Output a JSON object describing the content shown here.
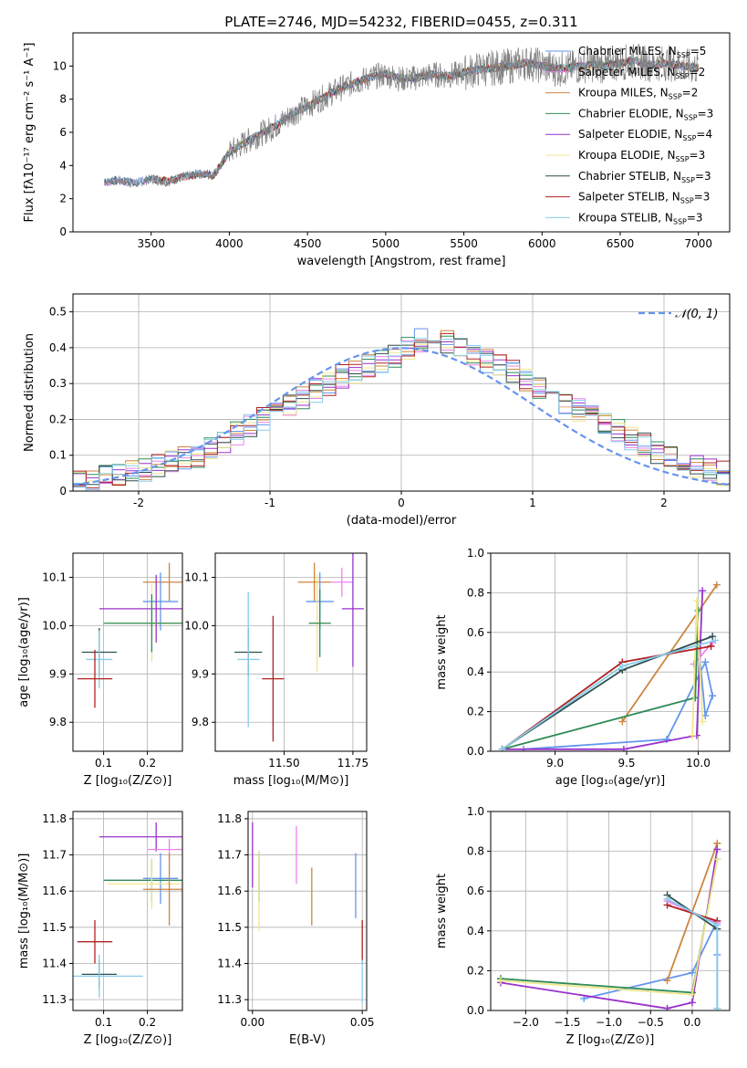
{
  "figure_title": "PLATE=2746, MJD=54232, FIBERID=0455, z=0.311",
  "colors": {
    "Chabrier MILES": "#6495ed",
    "Salpeter MILES": "#ee82ee",
    "Kroupa MILES": "#cd853f",
    "Chabrier ELODIE": "#2e8b57",
    "Salpeter ELODIE": "#9932cc",
    "Kroupa ELODIE": "#f0e68c",
    "Chabrier STELIB": "#2f4f4f",
    "Salpeter STELIB": "#b22222",
    "Kroupa STELIB": "#87ceeb"
  },
  "chart_data": [
    {
      "id": "spectrum",
      "type": "line",
      "xlabel": "wavelength [Angstrom, rest frame]",
      "ylabel": "Flux [fλ10⁻¹⁷ erg cm⁻² s⁻¹ A⁻¹]",
      "xlim": [
        3000,
        7200
      ],
      "ylim": [
        0,
        12
      ],
      "xticks": [
        3500,
        4000,
        4500,
        5000,
        5500,
        6000,
        6500,
        7000
      ],
      "yticks": [
        0,
        2,
        4,
        6,
        8,
        10
      ],
      "legend_position": "top-right",
      "legend": [
        {
          "label": "Chabrier MILES, N",
          "sub": "SSP",
          "tail": "=5",
          "color": "#6495ed"
        },
        {
          "label": "Salpeter MILES, N",
          "sub": "SSP",
          "tail": "=2",
          "color": "#ee82ee"
        },
        {
          "label": "Kroupa MILES, N",
          "sub": "SSP",
          "tail": "=2",
          "color": "#cd853f"
        },
        {
          "label": "Chabrier ELODIE, N",
          "sub": "SSP",
          "tail": "=3",
          "color": "#2e8b57"
        },
        {
          "label": "Salpeter ELODIE, N",
          "sub": "SSP",
          "tail": "=4",
          "color": "#9932cc"
        },
        {
          "label": "Kroupa ELODIE, N",
          "sub": "SSP",
          "tail": "=3",
          "color": "#f0e68c"
        },
        {
          "label": "Chabrier STELIB, N",
          "sub": "SSP",
          "tail": "=3",
          "color": "#2f4f4f"
        },
        {
          "label": "Salpeter STELIB, N",
          "sub": "SSP",
          "tail": "=3",
          "color": "#b22222"
        },
        {
          "label": "Kroupa STELIB, N",
          "sub": "SSP",
          "tail": "=3",
          "color": "#87ceeb"
        }
      ],
      "data_x": [
        3200,
        3300,
        3400,
        3500,
        3600,
        3700,
        3800,
        3900,
        4000,
        4100,
        4200,
        4300,
        4400,
        4500,
        4600,
        4700,
        4800,
        4900,
        5000,
        5100,
        5200,
        5300,
        5400,
        5500,
        5600,
        5700,
        5800,
        5900,
        6000,
        6100,
        6200,
        6300,
        6400,
        6500,
        6600,
        6700,
        6800,
        6900,
        7000
      ],
      "data_y": [
        3.0,
        3.1,
        2.9,
        3.2,
        3.0,
        3.3,
        3.5,
        3.4,
        4.8,
        5.4,
        5.9,
        6.4,
        7.1,
        7.6,
        8.1,
        8.6,
        9.0,
        9.3,
        9.5,
        9.2,
        9.3,
        9.5,
        9.4,
        9.6,
        9.8,
        9.9,
        10.0,
        10.2,
        10.0,
        9.8,
        9.9,
        10.1,
        10.0,
        10.2,
        10.3,
        10.1,
        10.2,
        10.0,
        9.9
      ],
      "data_color": "#808080",
      "model_y": [
        3.0,
        3.1,
        2.95,
        3.2,
        3.05,
        3.3,
        3.5,
        3.45,
        4.8,
        5.4,
        5.9,
        6.4,
        7.1,
        7.6,
        8.1,
        8.6,
        9.0,
        9.3,
        9.5,
        9.25,
        9.3,
        9.5,
        9.4,
        9.6,
        9.8,
        9.9,
        10.0,
        10.2,
        10.0,
        9.85,
        9.9,
        10.1,
        10.0,
        10.2,
        10.3,
        10.1,
        10.2,
        10.0,
        9.9
      ],
      "model_start": {
        "Chabrier MILES": 3200,
        "Salpeter MILES": 3200,
        "Kroupa MILES": 3520,
        "Chabrier ELODIE": 3900,
        "Salpeter ELODIE": 3900,
        "Kroupa ELODIE": 3900,
        "Chabrier STELIB": 3200,
        "Salpeter STELIB": 3520,
        "Kroupa STELIB": 3200
      }
    },
    {
      "id": "residuals",
      "type": "step",
      "xlabel": "(data-model)/error",
      "ylabel": "Normed distribution",
      "xlim": [
        -2.5,
        2.5
      ],
      "ylim": [
        0,
        0.55
      ],
      "xticks": [
        -2,
        -1,
        0,
        1,
        2
      ],
      "yticks": [
        0.0,
        0.1,
        0.2,
        0.3,
        0.4,
        0.5
      ],
      "grid": true,
      "legend_position": "top-right",
      "legend_label": "𝒩(0, 1)",
      "normal_color": "#6495ed",
      "bin_width": 0.1,
      "base": [
        0.03,
        0.03,
        0.04,
        0.05,
        0.05,
        0.06,
        0.07,
        0.08,
        0.09,
        0.1,
        0.12,
        0.14,
        0.16,
        0.18,
        0.2,
        0.22,
        0.24,
        0.26,
        0.28,
        0.3,
        0.32,
        0.33,
        0.35,
        0.36,
        0.38,
        0.4,
        0.42,
        0.44,
        0.42,
        0.4,
        0.38,
        0.36,
        0.35,
        0.33,
        0.31,
        0.29,
        0.27,
        0.25,
        0.23,
        0.21,
        0.19,
        0.17,
        0.15,
        0.13,
        0.11,
        0.09,
        0.08,
        0.07,
        0.06,
        0.05
      ]
    },
    {
      "id": "age-vs-Z",
      "type": "errorbar",
      "xlabel": "Z [log₁₀(Z/Z⊙)]",
      "ylabel": "age  [log₁₀(age/yr)]",
      "xlim": [
        0.03,
        0.28
      ],
      "ylim": [
        9.74,
        10.15
      ],
      "xticks": [
        0.1,
        0.2
      ],
      "xticklabels": [
        "0.1",
        "0.2"
      ],
      "yticks": [
        9.8,
        9.9,
        10.0,
        10.1
      ],
      "yticklabels": [
        "9.8",
        "9.9",
        "10.0",
        "10.1"
      ],
      "grid": true,
      "points": [
        {
          "model": "Kroupa MILES",
          "x": 0.25,
          "xerr": 0.06,
          "y": 10.09,
          "yerr": 0.04
        },
        {
          "model": "Chabrier MILES",
          "x": 0.23,
          "xerr": 0.04,
          "y": 10.05,
          "yerr": 0.06
        },
        {
          "model": "Salpeter ELODIE",
          "x": 0.22,
          "xerr": 0.13,
          "y": 10.035,
          "yerr": 0.07
        },
        {
          "model": "Kroupa ELODIE",
          "x": 0.21,
          "xerr": 0.1,
          "y": 10.005,
          "yerr": 0.08
        },
        {
          "model": "Chabrier ELODIE",
          "x": 0.21,
          "xerr": 0.11,
          "y": 10.005,
          "yerr": 0.06
        },
        {
          "model": "Chabrier STELIB",
          "x": 0.09,
          "xerr": 0.04,
          "y": 9.945,
          "yerr": 0.05
        },
        {
          "model": "Kroupa STELIB",
          "x": 0.09,
          "xerr": 0.03,
          "y": 9.93,
          "yerr": 0.06
        },
        {
          "model": "Salpeter STELIB",
          "x": 0.08,
          "xerr": 0.04,
          "y": 9.89,
          "yerr": 0.06
        }
      ]
    },
    {
      "id": "age-vs-mass",
      "type": "errorbar",
      "xlabel": "mass [log₁₀(M/M⊙)]",
      "ylabel": "",
      "xlim": [
        11.25,
        11.8
      ],
      "ylim": [
        9.74,
        10.15
      ],
      "xticks": [
        11.5,
        11.75
      ],
      "xticklabels": [
        "11.50",
        "11.75"
      ],
      "yticks": [
        9.8,
        9.9,
        10.0,
        10.1
      ],
      "yticklabels": [
        "9.8",
        "9.9",
        "10.0",
        "10.1"
      ],
      "grid": true,
      "points": [
        {
          "model": "Kroupa MILES",
          "x": 11.61,
          "xerr": 0.06,
          "y": 10.09,
          "yerr": 0.04
        },
        {
          "model": "Salpeter MILES",
          "x": 11.71,
          "xerr": 0.04,
          "y": 10.09,
          "yerr": 0.03
        },
        {
          "model": "Chabrier MILES",
          "x": 11.63,
          "xerr": 0.05,
          "y": 10.05,
          "yerr": 0.06
        },
        {
          "model": "Salpeter ELODIE",
          "x": 11.75,
          "xerr": 0.04,
          "y": 10.035,
          "yerr": 0.12
        },
        {
          "model": "Kroupa ELODIE",
          "x": 11.62,
          "xerr": 0.03,
          "y": 10.005,
          "yerr": 0.1
        },
        {
          "model": "Chabrier ELODIE",
          "x": 11.63,
          "xerr": 0.04,
          "y": 10.005,
          "yerr": 0.07
        },
        {
          "model": "Chabrier STELIB",
          "x": 11.37,
          "xerr": 0.05,
          "y": 9.945,
          "yerr": 0.05
        },
        {
          "model": "Kroupa STELIB",
          "x": 11.37,
          "xerr": 0.04,
          "y": 9.93,
          "yerr": 0.14
        },
        {
          "model": "Salpeter STELIB",
          "x": 11.46,
          "xerr": 0.04,
          "y": 9.89,
          "yerr": 0.13
        }
      ]
    },
    {
      "id": "massweight-vs-age",
      "type": "line",
      "xlabel": "age  [log₁₀(age/yr)]",
      "ylabel": "mass weight",
      "xlim": [
        8.55,
        10.22
      ],
      "ylim": [
        0,
        1
      ],
      "xticks": [
        9.0,
        9.5,
        10.0
      ],
      "xticklabels": [
        "9.0",
        "9.5",
        "10.0"
      ],
      "yticks": [
        0.0,
        0.2,
        0.4,
        0.6,
        0.8,
        1.0
      ],
      "yticklabels": [
        "0.0",
        "0.2",
        "0.4",
        "0.6",
        "0.8",
        "1.0"
      ],
      "grid": true,
      "series": [
        {
          "model": "Chabrier MILES",
          "x": [
            8.78,
            9.78,
            10.05,
            10.1,
            10.05,
            10.0
          ],
          "y": [
            0.01,
            0.06,
            0.45,
            0.28,
            0.18,
            0.55
          ]
        },
        {
          "model": "Kroupa MILES",
          "x": [
            9.47,
            10.13
          ],
          "y": [
            0.15,
            0.84
          ]
        },
        {
          "model": "Salpeter MILES",
          "x": [
            9.97,
            10.1
          ],
          "y": [
            0.44,
            0.55
          ]
        },
        {
          "model": "Salpeter ELODIE",
          "x": [
            8.63,
            9.48,
            9.99,
            10.03
          ],
          "y": [
            0.01,
            0.01,
            0.08,
            0.81
          ]
        },
        {
          "model": "Chabrier ELODIE",
          "x": [
            8.63,
            9.98,
            10.0
          ],
          "y": [
            0.01,
            0.27,
            0.71
          ]
        },
        {
          "model": "Kroupa ELODIE",
          "x": [
            9.96,
            9.99,
            10.03
          ],
          "y": [
            0.08,
            0.76,
            0.15
          ]
        },
        {
          "model": "Chabrier STELIB",
          "x": [
            8.63,
            9.47,
            10.1
          ],
          "y": [
            0.01,
            0.41,
            0.58
          ]
        },
        {
          "model": "Salpeter STELIB",
          "x": [
            8.63,
            9.47,
            10.09
          ],
          "y": [
            0.01,
            0.45,
            0.53
          ]
        },
        {
          "model": "Kroupa STELIB",
          "x": [
            8.63,
            9.47,
            10.12
          ],
          "y": [
            0.01,
            0.43,
            0.56
          ]
        }
      ]
    },
    {
      "id": "mass-vs-Z",
      "type": "errorbar",
      "xlabel": "Z [log₁₀(Z/Z⊙)]",
      "ylabel": "mass [log₁₀(M/M⊙)]",
      "xlim": [
        0.03,
        0.28
      ],
      "ylim": [
        11.27,
        11.82
      ],
      "xticks": [
        0.1,
        0.2
      ],
      "xticklabels": [
        "0.1",
        "0.2"
      ],
      "yticks": [
        11.3,
        11.4,
        11.5,
        11.6,
        11.7,
        11.8
      ],
      "yticklabels": [
        "11.3",
        "11.4",
        "11.5",
        "11.6",
        "11.7",
        "11.8"
      ],
      "grid": true,
      "points": [
        {
          "model": "Salpeter ELODIE",
          "x": 0.22,
          "xerr": 0.13,
          "y": 11.75,
          "yerr": 0.04
        },
        {
          "model": "Salpeter MILES",
          "x": 0.25,
          "xerr": 0.05,
          "y": 11.715,
          "yerr": 0.03
        },
        {
          "model": "Chabrier MILES",
          "x": 0.23,
          "xerr": 0.04,
          "y": 11.635,
          "yerr": 0.07
        },
        {
          "model": "Chabrier ELODIE",
          "x": 0.21,
          "xerr": 0.11,
          "y": 11.63,
          "yerr": 0.06
        },
        {
          "model": "Kroupa ELODIE",
          "x": 0.21,
          "xerr": 0.1,
          "y": 11.62,
          "yerr": 0.07
        },
        {
          "model": "Kroupa MILES",
          "x": 0.25,
          "xerr": 0.06,
          "y": 11.605,
          "yerr": 0.1
        },
        {
          "model": "Salpeter STELIB",
          "x": 0.08,
          "xerr": 0.04,
          "y": 11.46,
          "yerr": 0.06
        },
        {
          "model": "Chabrier STELIB",
          "x": 0.09,
          "xerr": 0.04,
          "y": 11.37,
          "yerr": 0.04
        },
        {
          "model": "Kroupa STELIB",
          "x": 0.09,
          "xerr": 0.1,
          "y": 11.365,
          "yerr": 0.06
        }
      ]
    },
    {
      "id": "mass-vs-EBV",
      "type": "errorbar",
      "xlabel": "E(B-V)",
      "ylabel": "",
      "xlim": [
        -0.002,
        0.052
      ],
      "ylim": [
        11.27,
        11.82
      ],
      "xticks": [
        0.0,
        0.05
      ],
      "xticklabels": [
        "0.00",
        "0.05"
      ],
      "yticks": [
        11.3,
        11.4,
        11.5,
        11.6,
        11.7,
        11.8
      ],
      "yticklabels": [
        "11.3",
        "11.4",
        "11.5",
        "11.6",
        "11.7",
        "11.8"
      ],
      "grid": true,
      "points": [
        {
          "model": "Salpeter ELODIE",
          "x": 0.0,
          "xerr": 0,
          "y": 11.7,
          "yerr": 0.09
        },
        {
          "model": "Chabrier ELODIE",
          "x": 0.003,
          "xerr": 0,
          "y": 11.64,
          "yerr": 0.07
        },
        {
          "model": "Kroupa ELODIE",
          "x": 0.003,
          "xerr": 0,
          "y": 11.6,
          "yerr": 0.11
        },
        {
          "model": "Salpeter MILES",
          "x": 0.02,
          "xerr": 0,
          "y": 11.7,
          "yerr": 0.08
        },
        {
          "model": "Kroupa MILES",
          "x": 0.027,
          "xerr": 0,
          "y": 11.585,
          "yerr": 0.08
        },
        {
          "model": "Chabrier MILES",
          "x": 0.047,
          "xerr": 0,
          "y": 11.615,
          "yerr": 0.09
        },
        {
          "model": "Salpeter STELIB",
          "x": 0.05,
          "xerr": 0,
          "y": 11.46,
          "yerr": 0.06
        },
        {
          "model": "Kroupa STELIB",
          "x": 0.05,
          "xerr": 0,
          "y": 11.35,
          "yerr": 0.06
        }
      ]
    },
    {
      "id": "massweight-vs-Z",
      "type": "line",
      "xlabel": "Z [log₁₀(Z/Z⊙)]",
      "ylabel": "mass weight",
      "xlim": [
        -2.42,
        0.45
      ],
      "ylim": [
        0,
        1
      ],
      "xticks": [
        -2.0,
        -1.5,
        -1.0,
        -0.5,
        0.0
      ],
      "xticklabels": [
        "−2.0",
        "−1.5",
        "−1.0",
        "−0.5",
        "0.0"
      ],
      "yticks": [
        0.0,
        0.2,
        0.4,
        0.6,
        0.8,
        1.0
      ],
      "yticklabels": [
        "0.0",
        "0.2",
        "0.4",
        "0.6",
        "0.8",
        "1.0"
      ],
      "grid": true,
      "series": [
        {
          "model": "Chabrier MILES",
          "x": [
            -1.3,
            0.0,
            0.3,
            0.3,
            0.3
          ],
          "y": [
            0.06,
            0.19,
            0.45,
            0.28,
            0.01
          ]
        },
        {
          "model": "Kroupa MILES",
          "x": [
            -0.3,
            0.3
          ],
          "y": [
            0.15,
            0.84
          ]
        },
        {
          "model": "Salpeter MILES",
          "x": [
            -0.3,
            0.3
          ],
          "y": [
            0.55,
            0.44
          ]
        },
        {
          "model": "Salpeter ELODIE",
          "x": [
            -2.3,
            -0.3,
            0.0,
            0.3
          ],
          "y": [
            0.14,
            0.01,
            0.04,
            0.81
          ]
        },
        {
          "model": "Chabrier ELODIE",
          "x": [
            -2.3,
            0.0,
            0.3
          ],
          "y": [
            0.16,
            0.09,
            0.76
          ]
        },
        {
          "model": "Kroupa ELODIE",
          "x": [
            -2.3,
            0.0,
            0.3
          ],
          "y": [
            0.15,
            0.08,
            0.76
          ]
        },
        {
          "model": "Chabrier STELIB",
          "x": [
            -0.3,
            0.3
          ],
          "y": [
            0.58,
            0.41
          ]
        },
        {
          "model": "Salpeter STELIB",
          "x": [
            -0.3,
            0.3
          ],
          "y": [
            0.53,
            0.45
          ]
        },
        {
          "model": "Kroupa STELIB",
          "x": [
            -0.3,
            0.3,
            0.3
          ],
          "y": [
            0.56,
            0.43,
            0.01
          ]
        }
      ]
    }
  ]
}
